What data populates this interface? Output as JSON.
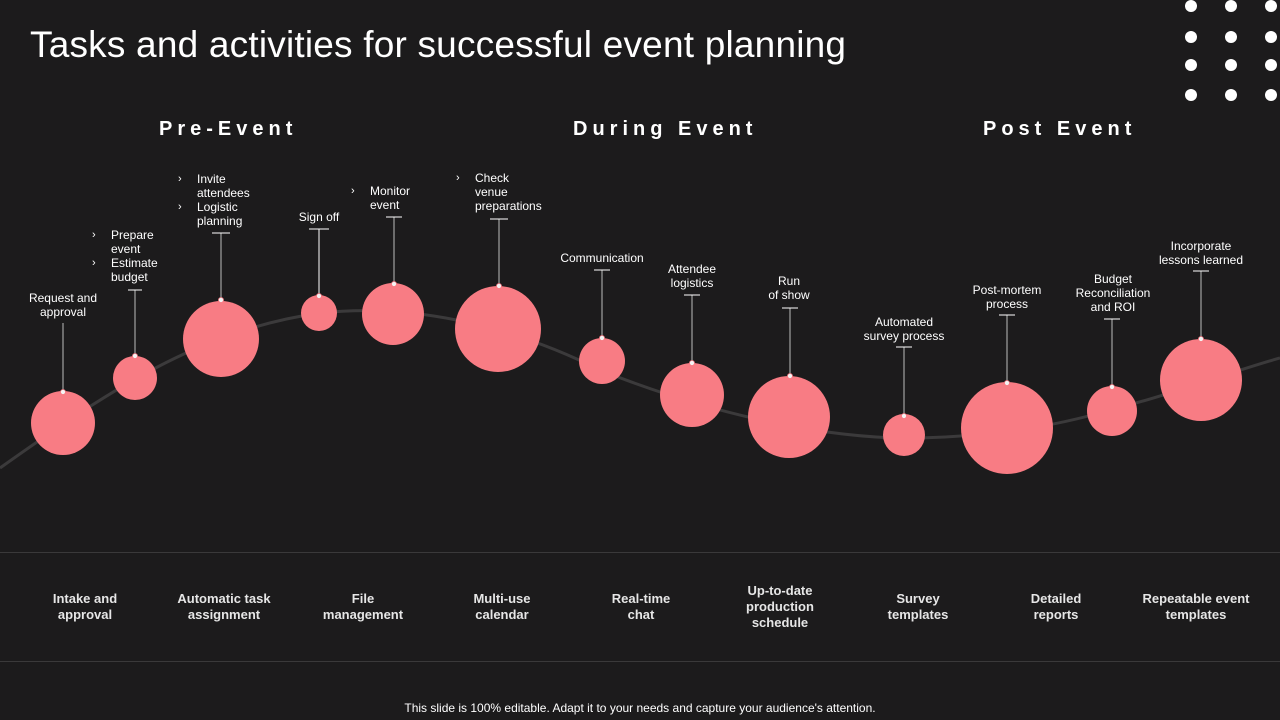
{
  "title": "Tasks and activities for successful event planning",
  "colors": {
    "bubble": "#f87c84",
    "curve": "#3b3a3b",
    "background": "#1c1b1c"
  },
  "phases": {
    "pre": "Pre-Event",
    "during": "During Event",
    "post": "Post Event"
  },
  "steps": {
    "s1": "Request and\napproval",
    "s2a": "Prepare\nevent",
    "s2b": "Estimate\nbudget",
    "s3a": "Invite\nattendees",
    "s3b": "Logistic\nplanning",
    "s4": "Sign off",
    "s5": "Monitor\nevent",
    "s6": "Check\nvenue\npreparations",
    "s7": "Communication",
    "s8": "Attendee\nlogistics",
    "s9": "Run\nof show",
    "s10": "Automated\nsurvey process",
    "s11": "Post-mortem\nprocess",
    "s12": "Budget\nReconciliation\nand ROI",
    "s13": "Incorporate\nlessons learned"
  },
  "features": [
    "Intake and\napproval",
    "Automatic task\nassignment",
    "File\nmanagement",
    "Multi-use\ncalendar",
    "Real-time\nchat",
    "Up-to-date\nproduction\nschedule",
    "Survey\ntemplates",
    "Detailed\nreports",
    "Repeatable event\ntemplates"
  ],
  "footer": "This slide is 100% editable. Adapt it to your needs and capture your audience's attention."
}
